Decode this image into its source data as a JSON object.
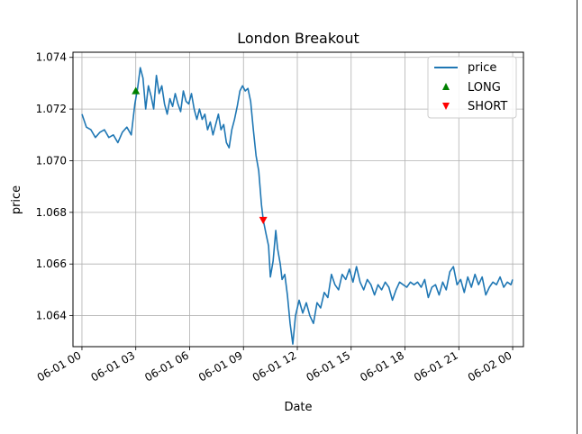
{
  "chart_data": {
    "type": "line",
    "title": "London Breakout",
    "xlabel": "Date",
    "ylabel": "price",
    "grid": true,
    "legend_position": "top-right",
    "x_range_hours": [
      -0.5,
      24.6
    ],
    "ylim": [
      1.0628,
      1.0742
    ],
    "x_ticks": [
      {
        "hour": 0,
        "label": "06-01 00"
      },
      {
        "hour": 3,
        "label": "06-01 03"
      },
      {
        "hour": 6,
        "label": "06-01 06"
      },
      {
        "hour": 9,
        "label": "06-01 09"
      },
      {
        "hour": 12,
        "label": "06-01 12"
      },
      {
        "hour": 15,
        "label": "06-01 15"
      },
      {
        "hour": 18,
        "label": "06-01 18"
      },
      {
        "hour": 21,
        "label": "06-01 21"
      },
      {
        "hour": 24,
        "label": "06-02 00"
      }
    ],
    "y_ticks": [
      1.064,
      1.066,
      1.068,
      1.07,
      1.072,
      1.074
    ],
    "series": [
      {
        "name": "price",
        "color": "#1f77b4",
        "points": [
          [
            0.0,
            1.0718
          ],
          [
            0.25,
            1.0713
          ],
          [
            0.5,
            1.0712
          ],
          [
            0.75,
            1.0709
          ],
          [
            1.0,
            1.0711
          ],
          [
            1.25,
            1.0712
          ],
          [
            1.5,
            1.0709
          ],
          [
            1.75,
            1.071
          ],
          [
            2.0,
            1.0707
          ],
          [
            2.25,
            1.0711
          ],
          [
            2.5,
            1.0713
          ],
          [
            2.75,
            1.071
          ],
          [
            2.95,
            1.0722
          ],
          [
            3.1,
            1.0728
          ],
          [
            3.25,
            1.0736
          ],
          [
            3.4,
            1.0732
          ],
          [
            3.55,
            1.072
          ],
          [
            3.7,
            1.0729
          ],
          [
            3.85,
            1.0725
          ],
          [
            4.0,
            1.072
          ],
          [
            4.15,
            1.0733
          ],
          [
            4.3,
            1.0726
          ],
          [
            4.45,
            1.0729
          ],
          [
            4.6,
            1.0722
          ],
          [
            4.75,
            1.0718
          ],
          [
            4.9,
            1.0724
          ],
          [
            5.05,
            1.0721
          ],
          [
            5.2,
            1.0726
          ],
          [
            5.35,
            1.0722
          ],
          [
            5.5,
            1.0719
          ],
          [
            5.65,
            1.0727
          ],
          [
            5.8,
            1.0723
          ],
          [
            5.95,
            1.0722
          ],
          [
            6.1,
            1.0726
          ],
          [
            6.25,
            1.072
          ],
          [
            6.4,
            1.0716
          ],
          [
            6.55,
            1.072
          ],
          [
            6.7,
            1.0716
          ],
          [
            6.85,
            1.0718
          ],
          [
            7.0,
            1.0712
          ],
          [
            7.15,
            1.0715
          ],
          [
            7.3,
            1.071
          ],
          [
            7.45,
            1.0714
          ],
          [
            7.6,
            1.0718
          ],
          [
            7.75,
            1.0712
          ],
          [
            7.9,
            1.0714
          ],
          [
            8.05,
            1.0707
          ],
          [
            8.2,
            1.0705
          ],
          [
            8.35,
            1.0712
          ],
          [
            8.5,
            1.0716
          ],
          [
            8.65,
            1.0721
          ],
          [
            8.8,
            1.0727
          ],
          [
            8.95,
            1.0729
          ],
          [
            9.1,
            1.0727
          ],
          [
            9.25,
            1.0728
          ],
          [
            9.4,
            1.0723
          ],
          [
            9.55,
            1.0712
          ],
          [
            9.7,
            1.0702
          ],
          [
            9.85,
            1.0696
          ],
          [
            10.0,
            1.0683
          ],
          [
            10.1,
            1.0677
          ],
          [
            10.25,
            1.0672
          ],
          [
            10.4,
            1.0667
          ],
          [
            10.5,
            1.0655
          ],
          [
            10.65,
            1.0661
          ],
          [
            10.8,
            1.0673
          ],
          [
            10.9,
            1.0666
          ],
          [
            11.05,
            1.066
          ],
          [
            11.15,
            1.0654
          ],
          [
            11.3,
            1.0656
          ],
          [
            11.45,
            1.0648
          ],
          [
            11.6,
            1.0637
          ],
          [
            11.75,
            1.0629
          ],
          [
            11.9,
            1.064
          ],
          [
            12.1,
            1.0646
          ],
          [
            12.3,
            1.0641
          ],
          [
            12.5,
            1.0645
          ],
          [
            12.7,
            1.064
          ],
          [
            12.9,
            1.0637
          ],
          [
            13.1,
            1.0645
          ],
          [
            13.3,
            1.0643
          ],
          [
            13.5,
            1.0649
          ],
          [
            13.7,
            1.0647
          ],
          [
            13.9,
            1.0656
          ],
          [
            14.1,
            1.0652
          ],
          [
            14.3,
            1.065
          ],
          [
            14.5,
            1.0656
          ],
          [
            14.7,
            1.0654
          ],
          [
            14.9,
            1.0658
          ],
          [
            15.1,
            1.0653
          ],
          [
            15.3,
            1.0659
          ],
          [
            15.5,
            1.0653
          ],
          [
            15.7,
            1.065
          ],
          [
            15.9,
            1.0654
          ],
          [
            16.1,
            1.0652
          ],
          [
            16.3,
            1.0648
          ],
          [
            16.5,
            1.0652
          ],
          [
            16.7,
            1.065
          ],
          [
            16.9,
            1.0653
          ],
          [
            17.1,
            1.0651
          ],
          [
            17.3,
            1.0646
          ],
          [
            17.5,
            1.065
          ],
          [
            17.7,
            1.0653
          ],
          [
            17.9,
            1.0652
          ],
          [
            18.1,
            1.0651
          ],
          [
            18.3,
            1.0653
          ],
          [
            18.5,
            1.0652
          ],
          [
            18.7,
            1.0653
          ],
          [
            18.9,
            1.0651
          ],
          [
            19.1,
            1.0654
          ],
          [
            19.3,
            1.0647
          ],
          [
            19.5,
            1.0651
          ],
          [
            19.7,
            1.0652
          ],
          [
            19.9,
            1.0648
          ],
          [
            20.1,
            1.0653
          ],
          [
            20.3,
            1.065
          ],
          [
            20.5,
            1.0657
          ],
          [
            20.7,
            1.0659
          ],
          [
            20.9,
            1.0652
          ],
          [
            21.1,
            1.0654
          ],
          [
            21.3,
            1.0649
          ],
          [
            21.5,
            1.0655
          ],
          [
            21.7,
            1.0651
          ],
          [
            21.9,
            1.0656
          ],
          [
            22.1,
            1.0652
          ],
          [
            22.3,
            1.0655
          ],
          [
            22.5,
            1.0648
          ],
          [
            22.7,
            1.0651
          ],
          [
            22.9,
            1.0653
          ],
          [
            23.1,
            1.0652
          ],
          [
            23.3,
            1.0655
          ],
          [
            23.5,
            1.0651
          ],
          [
            23.7,
            1.0653
          ],
          [
            23.9,
            1.0652
          ],
          [
            24.0,
            1.0654
          ]
        ]
      },
      {
        "name": "LONG",
        "marker": "triangle-up",
        "color": "#008000",
        "points": [
          [
            3.0,
            1.0727
          ]
        ]
      },
      {
        "name": "SHORT",
        "marker": "triangle-down",
        "color": "#ff0000",
        "points": [
          [
            10.1,
            1.0677
          ]
        ]
      }
    ]
  }
}
